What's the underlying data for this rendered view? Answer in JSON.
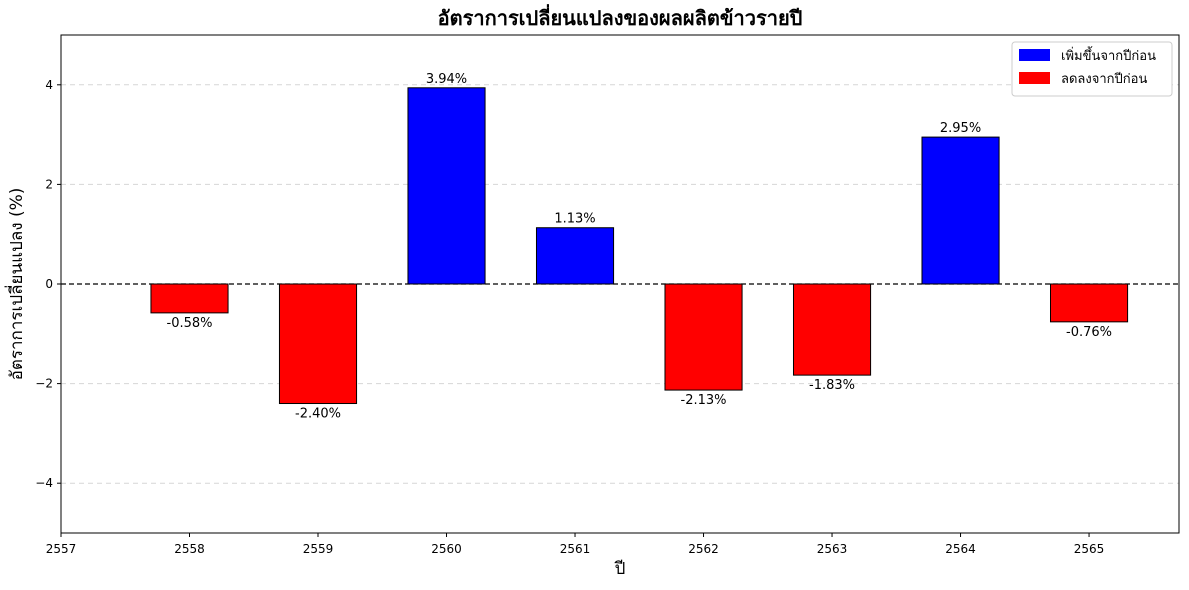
{
  "chart_data": {
    "type": "bar",
    "title": "อัตราการเปลี่ยนแปลงของผลผลิตข้าวรายปี",
    "xlabel": "ปี",
    "ylabel": "อัตราการเปลี่ยนแปลง (%)",
    "categories": [
      "2558",
      "2559",
      "2560",
      "2561",
      "2562",
      "2563",
      "2564",
      "2565"
    ],
    "values": [
      -0.58,
      -2.4,
      3.94,
      1.13,
      -2.13,
      -1.83,
      2.95,
      -0.76
    ],
    "data_labels": [
      "-0.58%",
      "-2.40%",
      "3.94%",
      "1.13%",
      "-2.13%",
      "-1.83%",
      "2.95%",
      "-0.76%"
    ],
    "x_ticks": [
      "2557",
      "2558",
      "2559",
      "2560",
      "2561",
      "2562",
      "2563",
      "2564",
      "2565"
    ],
    "y_ticks": [
      -4,
      -2,
      0,
      2,
      4
    ],
    "y_tick_labels": [
      "−4",
      "−2",
      "0",
      "2",
      "4"
    ],
    "ylim": [
      -5,
      5
    ],
    "xlim": [
      2557,
      2565.7
    ],
    "grid": "horizontal dashed",
    "zero_line": "dashed black",
    "legend": {
      "position": "top-right",
      "entries": [
        {
          "label": "เพิ่มขึ้นจากปีก่อน",
          "color": "#0000ff"
        },
        {
          "label": "ลดลงจากปีก่อน",
          "color": "#ff0000"
        }
      ]
    },
    "colors": {
      "increase": "#0000ff",
      "decrease": "#ff0000"
    }
  }
}
